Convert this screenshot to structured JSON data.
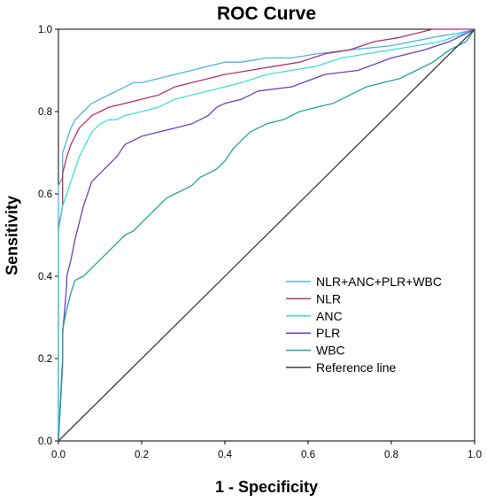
{
  "chart_data": {
    "type": "line",
    "title": "ROC Curve",
    "xlabel": "1 - Specificity",
    "ylabel": "Sensitivity",
    "xlim": [
      0,
      1
    ],
    "ylim": [
      0,
      1
    ],
    "x_ticks": [
      "0.0",
      "0.2",
      "0.4",
      "0.6",
      "0.8",
      "1.0"
    ],
    "y_ticks": [
      "0.0",
      "0.2",
      "0.4",
      "0.6",
      "0.8",
      "1.0"
    ],
    "grid": false,
    "legend_position": "bottom-right",
    "series": [
      {
        "name": "NLR+ANC+PLR+WBC",
        "color": "#4bb3e6",
        "x": [
          0,
          0,
          0.01,
          0.01,
          0.02,
          0.03,
          0.04,
          0.05,
          0.06,
          0.07,
          0.08,
          0.1,
          0.12,
          0.14,
          0.16,
          0.18,
          0.2,
          0.24,
          0.28,
          0.32,
          0.36,
          0.4,
          0.44,
          0.5,
          0.56,
          0.62,
          0.7,
          0.8,
          0.9,
          0.96,
          1
        ],
        "y": [
          0,
          0.62,
          0.64,
          0.7,
          0.73,
          0.76,
          0.78,
          0.79,
          0.8,
          0.81,
          0.82,
          0.83,
          0.84,
          0.85,
          0.86,
          0.87,
          0.87,
          0.88,
          0.89,
          0.9,
          0.91,
          0.92,
          0.92,
          0.93,
          0.93,
          0.94,
          0.95,
          0.96,
          0.98,
          0.99,
          1
        ]
      },
      {
        "name": "NLR",
        "color": "#b0336b",
        "x": [
          0,
          0,
          0.01,
          0.01,
          0.02,
          0.03,
          0.04,
          0.05,
          0.06,
          0.07,
          0.08,
          0.1,
          0.12,
          0.16,
          0.2,
          0.24,
          0.28,
          0.32,
          0.36,
          0.4,
          0.46,
          0.52,
          0.58,
          0.64,
          0.7,
          0.76,
          0.82,
          0.86,
          0.9,
          1
        ],
        "y": [
          0,
          0.52,
          0.57,
          0.65,
          0.69,
          0.72,
          0.74,
          0.76,
          0.77,
          0.78,
          0.79,
          0.8,
          0.81,
          0.82,
          0.83,
          0.84,
          0.86,
          0.87,
          0.88,
          0.89,
          0.9,
          0.91,
          0.92,
          0.94,
          0.95,
          0.97,
          0.98,
          0.99,
          1,
          1
        ]
      },
      {
        "name": "ANC",
        "color": "#3ee0d8",
        "x": [
          0,
          0,
          0.01,
          0.02,
          0.03,
          0.04,
          0.05,
          0.06,
          0.07,
          0.08,
          0.1,
          0.12,
          0.14,
          0.16,
          0.2,
          0.24,
          0.28,
          0.32,
          0.36,
          0.4,
          0.44,
          0.5,
          0.56,
          0.62,
          0.68,
          0.74,
          0.8,
          0.86,
          0.92,
          1
        ],
        "y": [
          0,
          0.51,
          0.57,
          0.6,
          0.63,
          0.66,
          0.69,
          0.71,
          0.73,
          0.75,
          0.77,
          0.78,
          0.78,
          0.79,
          0.8,
          0.81,
          0.83,
          0.84,
          0.85,
          0.86,
          0.87,
          0.89,
          0.9,
          0.91,
          0.93,
          0.94,
          0.95,
          0.96,
          0.97,
          1
        ]
      },
      {
        "name": "PLR",
        "color": "#6a3fc0",
        "x": [
          0,
          0.01,
          0.01,
          0.02,
          0.02,
          0.03,
          0.04,
          0.05,
          0.06,
          0.07,
          0.08,
          0.1,
          0.12,
          0.14,
          0.16,
          0.18,
          0.2,
          0.24,
          0.28,
          0.32,
          0.36,
          0.38,
          0.4,
          0.44,
          0.48,
          0.56,
          0.64,
          0.72,
          0.8,
          0.88,
          0.94,
          1
        ],
        "y": [
          0,
          0.2,
          0.26,
          0.38,
          0.4,
          0.44,
          0.49,
          0.53,
          0.57,
          0.6,
          0.63,
          0.65,
          0.67,
          0.69,
          0.72,
          0.73,
          0.74,
          0.75,
          0.76,
          0.77,
          0.79,
          0.81,
          0.82,
          0.83,
          0.85,
          0.86,
          0.89,
          0.9,
          0.93,
          0.95,
          0.97,
          1
        ]
      },
      {
        "name": "WBC",
        "color": "#1fa3a3",
        "x": [
          0,
          0.01,
          0.01,
          0.02,
          0.03,
          0.04,
          0.06,
          0.08,
          0.1,
          0.12,
          0.14,
          0.16,
          0.18,
          0.2,
          0.22,
          0.24,
          0.26,
          0.28,
          0.3,
          0.32,
          0.34,
          0.36,
          0.38,
          0.4,
          0.42,
          0.44,
          0.46,
          0.48,
          0.5,
          0.54,
          0.58,
          0.62,
          0.66,
          0.7,
          0.74,
          0.78,
          0.82,
          0.86,
          0.9,
          0.94,
          0.98,
          1
        ],
        "y": [
          0,
          0.18,
          0.27,
          0.32,
          0.36,
          0.39,
          0.4,
          0.42,
          0.44,
          0.46,
          0.48,
          0.5,
          0.51,
          0.53,
          0.55,
          0.57,
          0.59,
          0.6,
          0.61,
          0.62,
          0.64,
          0.65,
          0.66,
          0.68,
          0.71,
          0.73,
          0.75,
          0.76,
          0.77,
          0.78,
          0.8,
          0.81,
          0.82,
          0.84,
          0.86,
          0.87,
          0.88,
          0.9,
          0.92,
          0.95,
          0.97,
          1
        ]
      },
      {
        "name": "Reference line",
        "color": "#3b3b3b",
        "x": [
          0,
          1
        ],
        "y": [
          0,
          1
        ]
      }
    ]
  }
}
